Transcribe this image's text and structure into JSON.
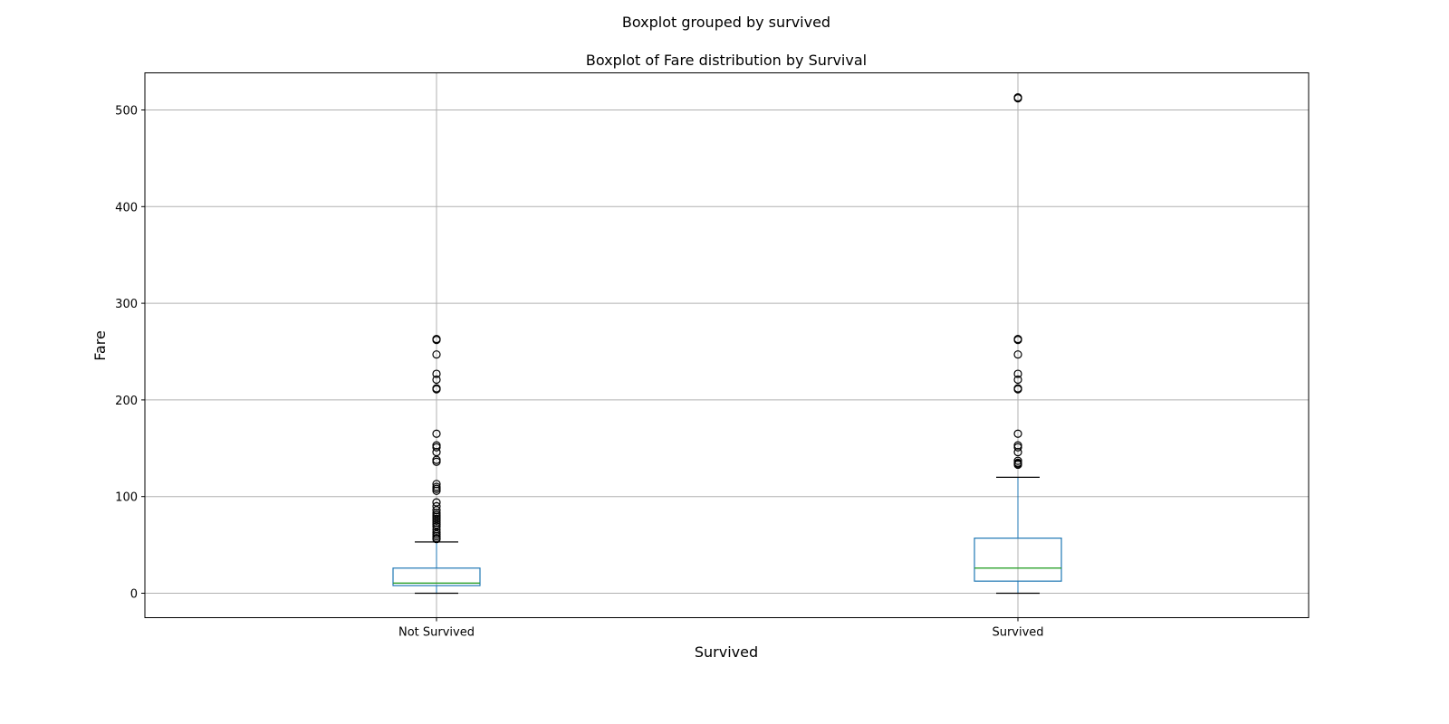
{
  "chart_data": {
    "type": "boxplot",
    "suptitle": "Boxplot grouped by survived",
    "title": "Boxplot of Fare distribution by Survival",
    "xlabel": "Survived",
    "ylabel": "Fare",
    "ylim": [
      -25,
      538
    ],
    "yticks": [
      0,
      100,
      200,
      300,
      400,
      500
    ],
    "grid": true,
    "categories": [
      "Not Survived",
      "Survived"
    ],
    "boxes": [
      {
        "name": "Not Survived",
        "whisker_low": 0,
        "q1": 7.9,
        "median": 10.5,
        "q3": 26,
        "whisker_high": 53,
        "outliers": [
          56,
          57,
          59,
          61,
          63,
          66,
          69,
          71,
          73,
          75,
          77,
          79,
          81,
          83,
          86,
          90,
          94,
          106,
          108,
          110,
          113,
          136,
          138,
          146,
          151,
          153,
          165,
          211,
          212,
          221,
          227,
          247,
          262,
          263
        ]
      },
      {
        "name": "Survived",
        "whisker_low": 0,
        "q1": 12.5,
        "median": 26,
        "q3": 57,
        "whisker_high": 120,
        "outliers": [
          133,
          134,
          135,
          137,
          146,
          151,
          153,
          165,
          211,
          212,
          221,
          227,
          247,
          262,
          263,
          512,
          513
        ]
      }
    ],
    "colors": {
      "box": "#1f77b4",
      "median": "#2ca02c",
      "whisker_cap": "#000000",
      "flier": "#000000",
      "grid": "#b0b0b0"
    }
  }
}
